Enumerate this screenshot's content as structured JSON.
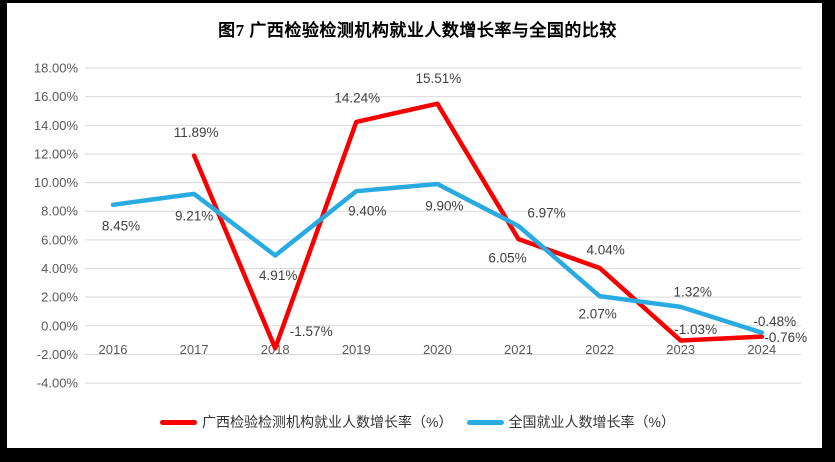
{
  "chart_data": {
    "type": "line",
    "title": "图7 广西检验检测机构就业人数增长率与全国的比较",
    "categories": [
      "2016",
      "2017",
      "2018",
      "2019",
      "2020",
      "2021",
      "2022",
      "2023",
      "2024"
    ],
    "series": [
      {
        "name": "广西检验检测机构就业人数增长率（%）",
        "color": "#F80000",
        "values": [
          null,
          11.89,
          -1.57,
          14.24,
          15.51,
          6.05,
          4.04,
          -1.03,
          -0.76
        ],
        "point_labels": [
          "",
          "11.89%",
          "-1.57%",
          "14.24%",
          "15.51%",
          "6.05%",
          "4.04%",
          "-1.03%",
          "-0.76%"
        ],
        "label_offsets": [
          [
            0,
            0
          ],
          [
            2,
            -23
          ],
          [
            36,
            -17
          ],
          [
            1,
            -24
          ],
          [
            1,
            -25
          ],
          [
            -11,
            19
          ],
          [
            6,
            -18
          ],
          [
            15,
            -11
          ],
          [
            24,
            1
          ]
        ]
      },
      {
        "name": "全国就业人数增长率（%）",
        "color": "#29ABE2",
        "values": [
          8.45,
          9.21,
          4.91,
          9.4,
          9.9,
          6.97,
          2.07,
          1.32,
          -0.48
        ],
        "point_labels": [
          "8.45%",
          "9.21%",
          "4.91%",
          "9.40%",
          "9.90%",
          "6.97%",
          "2.07%",
          "1.32%",
          "-0.48%"
        ],
        "label_offsets": [
          [
            8,
            21
          ],
          [
            0,
            22
          ],
          [
            3,
            20
          ],
          [
            11,
            20
          ],
          [
            7,
            22
          ],
          [
            28,
            -13
          ],
          [
            -2,
            18
          ],
          [
            12,
            -15
          ],
          [
            13,
            -11
          ]
        ]
      }
    ],
    "y_axis": {
      "min": -4,
      "max": 18,
      "step": 2
    },
    "y_tick_labels": [
      "18.00%",
      "16.00%",
      "14.00%",
      "12.00%",
      "10.00%",
      "8.00%",
      "6.00%",
      "4.00%",
      "2.00%",
      "0.00%",
      "-2.00%",
      "-4.00%"
    ],
    "grid": true,
    "legend_position": "bottom",
    "data_labels": true,
    "colors": {
      "gridline": "#D9D9D9",
      "axis_text": "#595959",
      "data_label_text": "#3F3F3F",
      "panel_background": "#FFFFFF",
      "frame_background": "#000000"
    }
  }
}
